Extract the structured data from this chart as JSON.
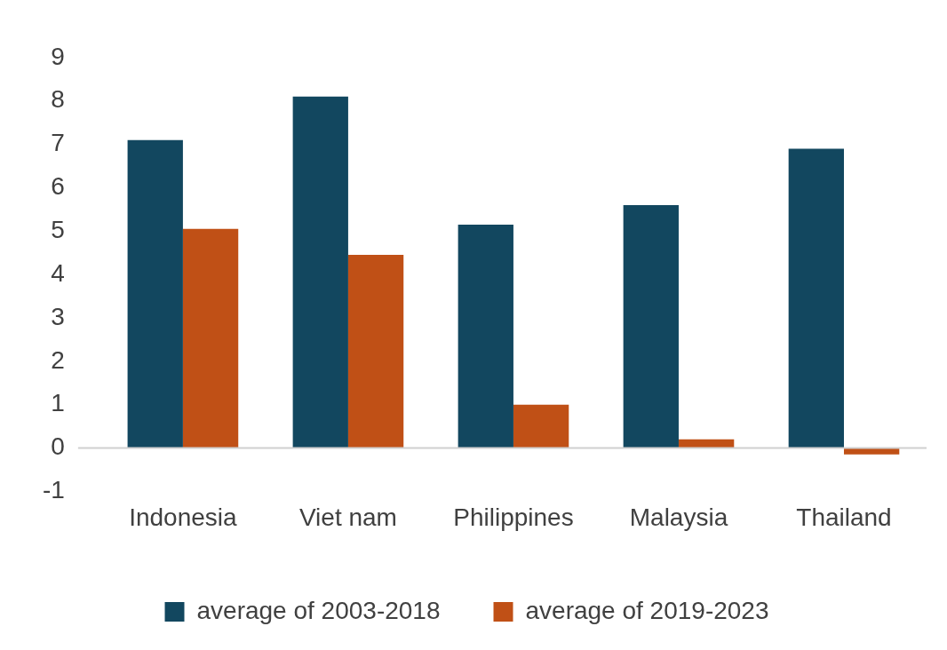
{
  "chart_data": {
    "type": "bar",
    "categories": [
      "Indonesia",
      "Viet nam",
      "Philippines",
      "Malaysia",
      "Thailand"
    ],
    "series": [
      {
        "name": "average of 2003-2018",
        "color": "#12475f",
        "values": [
          7.1,
          8.1,
          5.15,
          5.6,
          6.9
        ]
      },
      {
        "name": "average of 2019-2023",
        "color": "#c05016",
        "values": [
          5.05,
          4.45,
          1.0,
          0.2,
          -0.15
        ]
      }
    ],
    "ylim": [
      -1,
      9
    ],
    "yticks": [
      -1,
      0,
      1,
      2,
      3,
      4,
      5,
      6,
      7,
      8,
      9
    ],
    "grid": false,
    "legend": "bottom"
  }
}
